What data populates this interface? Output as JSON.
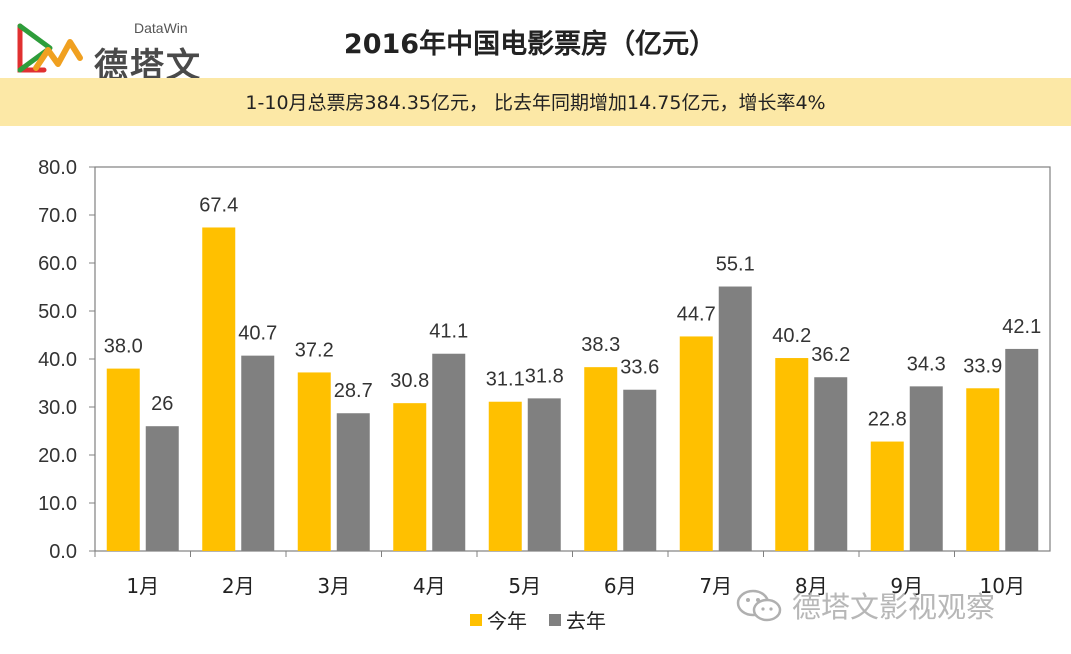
{
  "logo": {
    "name": "德塔文",
    "sub": "DataWin"
  },
  "header": {
    "title": "2016年中国电影票房（亿元）",
    "subtitle": "1-10月总票房384.35亿元， 比去年同期增加14.75亿元，增长率4%"
  },
  "watermark": {
    "text": "德塔文影视观察",
    "icon": "wechat-icon"
  },
  "colors": {
    "this_year": "#ffc000",
    "last_year": "#808080",
    "band": "#fce8a6"
  },
  "chart_data": {
    "type": "bar",
    "categories": [
      "1月",
      "2月",
      "3月",
      "4月",
      "5月",
      "6月",
      "7月",
      "8月",
      "9月",
      "10月"
    ],
    "series": [
      {
        "name": "今年",
        "values": [
          38.0,
          67.4,
          37.2,
          30.8,
          31.1,
          38.3,
          44.7,
          40.2,
          22.8,
          33.9
        ],
        "labels": [
          "38.0",
          "67.4",
          "37.2",
          "30.8",
          "31.1",
          "38.3",
          "44.7",
          "40.2",
          "22.8",
          "33.9"
        ]
      },
      {
        "name": "去年",
        "values": [
          26,
          40.7,
          28.7,
          41.1,
          31.8,
          33.6,
          55.1,
          36.2,
          34.3,
          42.1
        ],
        "labels": [
          "26",
          "40.7",
          "28.7",
          "41.1",
          "31.8",
          "33.6",
          "55.1",
          "36.2",
          "34.3",
          "42.1"
        ]
      }
    ],
    "ylim": [
      0,
      80
    ],
    "yticks": [
      "0.0",
      "10.0",
      "20.0",
      "30.0",
      "40.0",
      "50.0",
      "60.0",
      "70.0",
      "80.0"
    ],
    "xlabel": "",
    "ylabel": "",
    "grid": false,
    "legend": "bottom"
  }
}
